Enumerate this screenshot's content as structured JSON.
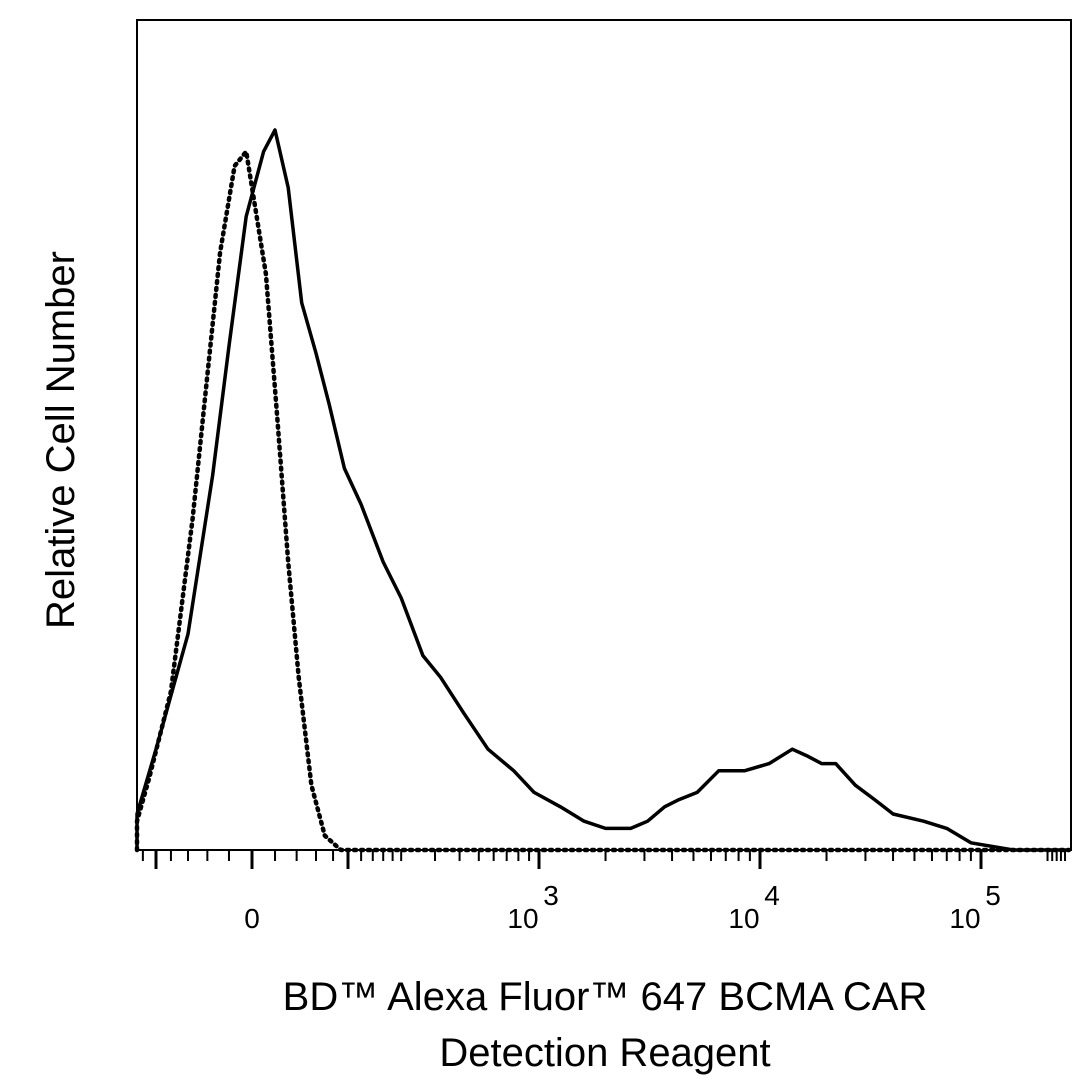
{
  "chart_data": {
    "type": "line",
    "title": "",
    "xlabel_lines": [
      "BD™ Alexa Fluor™ 647 BCMA CAR",
      "Detection Reagent"
    ],
    "ylabel": "Relative Cell Number",
    "x_scale": "biexponential (logicle)",
    "x_ticks": [
      {
        "value": 0,
        "base": "0",
        "exp": ""
      },
      {
        "value": 1000,
        "base": "10",
        "exp": "3"
      },
      {
        "value": 10000,
        "base": "10",
        "exp": "4"
      },
      {
        "value": 100000,
        "base": "10",
        "exp": "5"
      }
    ],
    "xlim": [
      -500,
      250000
    ],
    "ylim": [
      0,
      100
    ],
    "grid": false,
    "legend": "none",
    "series": [
      {
        "style": "solid",
        "color": "#000000",
        "points": [
          [
            -500,
            0
          ],
          [
            -260,
            1
          ],
          [
            -160,
            5
          ],
          [
            -100,
            14
          ],
          [
            -60,
            30
          ],
          [
            -35,
            52
          ],
          [
            -20,
            70
          ],
          [
            -5,
            88
          ],
          [
            10,
            97
          ],
          [
            20,
            100
          ],
          [
            32,
            92
          ],
          [
            45,
            76
          ],
          [
            60,
            69
          ],
          [
            75,
            62
          ],
          [
            95,
            53
          ],
          [
            120,
            48
          ],
          [
            160,
            40
          ],
          [
            200,
            35
          ],
          [
            260,
            27
          ],
          [
            320,
            24
          ],
          [
            420,
            19
          ],
          [
            560,
            14
          ],
          [
            760,
            11
          ],
          [
            950,
            8
          ],
          [
            1250,
            6
          ],
          [
            1600,
            4
          ],
          [
            2000,
            3
          ],
          [
            2600,
            3
          ],
          [
            3100,
            4
          ],
          [
            3700,
            6
          ],
          [
            4300,
            7
          ],
          [
            5200,
            8
          ],
          [
            6500,
            11
          ],
          [
            8500,
            11
          ],
          [
            11000,
            12
          ],
          [
            14000,
            14
          ],
          [
            16500,
            13
          ],
          [
            19000,
            12
          ],
          [
            22000,
            12
          ],
          [
            27000,
            9
          ],
          [
            33000,
            7
          ],
          [
            40000,
            5
          ],
          [
            55000,
            4
          ],
          [
            70000,
            3
          ],
          [
            90000,
            1
          ],
          [
            140000,
            0
          ],
          [
            250000,
            0
          ]
        ]
      },
      {
        "style": "dotted",
        "color": "#000000",
        "points": [
          [
            -500,
            0
          ],
          [
            -260,
            1
          ],
          [
            -160,
            4
          ],
          [
            -110,
            10
          ],
          [
            -80,
            22
          ],
          [
            -55,
            46
          ],
          [
            -40,
            66
          ],
          [
            -28,
            83
          ],
          [
            -15,
            95
          ],
          [
            -5,
            97
          ],
          [
            3,
            89
          ],
          [
            12,
            80
          ],
          [
            22,
            60
          ],
          [
            32,
            40
          ],
          [
            42,
            24
          ],
          [
            55,
            9
          ],
          [
            70,
            2
          ],
          [
            90,
            0
          ],
          [
            250000,
            0
          ]
        ]
      }
    ]
  }
}
